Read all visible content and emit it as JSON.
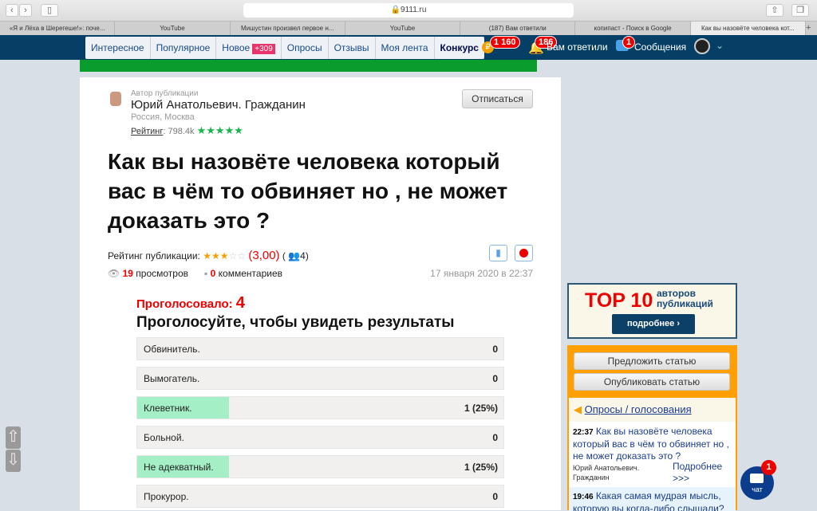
{
  "browser": {
    "url": "9111.ru",
    "tabs": [
      "«Я и Лёха в Шерегеше!»: поче...",
      "YouTube",
      "Мишустин произвел первое н...",
      "YouTube",
      "(187) Вам ответили",
      "копипаст - Поиск в Google",
      "Как вы назовёте человека кот..."
    ]
  },
  "nav": {
    "items": [
      "Интересное",
      "Популярное",
      "Новое",
      "Опросы",
      "Отзывы",
      "Моя лента",
      "Конкурс"
    ],
    "new_badge": "+309",
    "coins": "1 160",
    "answers_count": "186",
    "answers_label": "Вам ответили",
    "messages_count": "1",
    "messages_label": "Сообщения"
  },
  "author": {
    "caption": "Автор публикации",
    "name": "Юрий Анатольевич. Гражданин",
    "location": "Россия, Москва",
    "rating_label": "Рейтинг",
    "rating_value": "798.4k",
    "stars": 5,
    "unsubscribe": "Отписаться"
  },
  "post": {
    "title": "Как вы назовёте человека который вас в чём то обвиняет но , не может доказать это ?",
    "rating_label": "Рейтинг публикации:",
    "rating_stars": 3,
    "rating_value": "(3,00)",
    "voters": "4",
    "views": "19",
    "views_label": "просмотров",
    "comments": "0",
    "comments_label": "комментариев",
    "date": "17 января 2020 в 22:37"
  },
  "poll": {
    "voted_label": "Проголосовало:",
    "voted": "4",
    "prompt": "Проголосуйте, чтобы увидеть результаты",
    "options": [
      {
        "label": "Обвинитель.",
        "value": "0",
        "percent": 0
      },
      {
        "label": "Вымогатель.",
        "value": "0",
        "percent": 0
      },
      {
        "label": "Клеветник.",
        "value": "1 (25%)",
        "percent": 25
      },
      {
        "label": "Больной.",
        "value": "0",
        "percent": 0
      },
      {
        "label": "Не адекватный.",
        "value": "1 (25%)",
        "percent": 25
      },
      {
        "label": "Прокурор.",
        "value": "0",
        "percent": 0
      }
    ]
  },
  "sidebar": {
    "top10": "TOP 10",
    "top10_sub1": "авторов",
    "top10_sub2": "публикаций",
    "more": "подробнее",
    "suggest": "Предложить статью",
    "publish": "Опубликовать статью",
    "polls_title": "Опросы / голосования",
    "items": [
      {
        "time": "22:37",
        "title": "Как вы назовёте человека который вас в чём то обвиняет но , не может доказать это ?",
        "author": "Юрий Анатольевич. Гражданин",
        "more": "Подробнее >>>"
      },
      {
        "time": "19:46",
        "title": "Какая самая мудрая мысль, которую вы когда-либо слышали?"
      }
    ]
  },
  "chat": {
    "label": "чат",
    "count": "1"
  }
}
